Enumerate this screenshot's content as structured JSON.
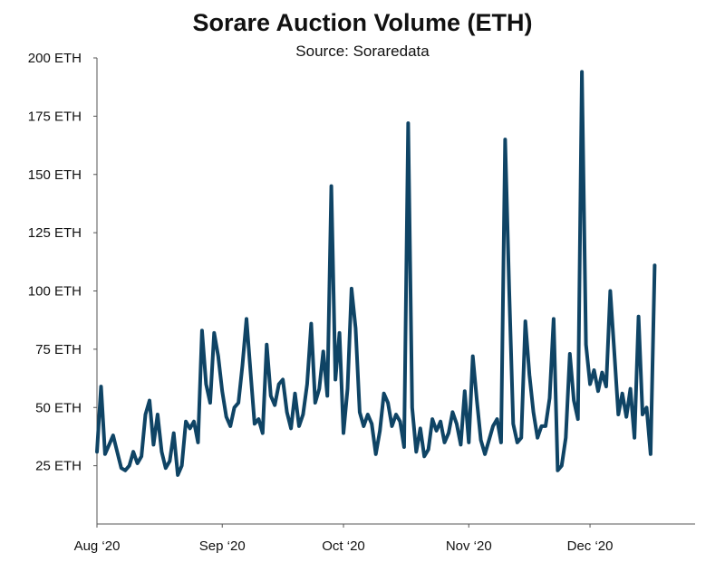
{
  "chart_data": {
    "type": "line",
    "title": "Sorare Auction Volume (ETH)",
    "subtitle": "Source: Soraredata",
    "xlabel": "",
    "ylabel": "",
    "ylim": [
      0,
      200
    ],
    "xlim": [
      "2020-08-01",
      "2020-12-27"
    ],
    "y_ticks": [
      25,
      50,
      75,
      100,
      125,
      150,
      175,
      200
    ],
    "y_tick_labels": [
      "25 ETH",
      "50 ETH",
      "75 ETH",
      "100 ETH",
      "125 ETH",
      "150 ETH",
      "175 ETH",
      "200 ETH"
    ],
    "x_ticks": [
      "2020-08-01",
      "2020-09-01",
      "2020-10-01",
      "2020-11-01",
      "2020-12-01"
    ],
    "x_tick_labels": [
      "Aug ‘20",
      "Sep ‘20",
      "Oct ‘20",
      "Nov ‘20",
      "Dec ‘20"
    ],
    "grid": false,
    "line_color": "#0f4465",
    "series": [
      {
        "start_date": "2020-08-01",
        "step_days": 1,
        "values": [
          31,
          59,
          30,
          34,
          38,
          31,
          24,
          23,
          25,
          31,
          26,
          29,
          47,
          53,
          34,
          47,
          31,
          24,
          27,
          39,
          21,
          25,
          44,
          41,
          44,
          35,
          83,
          60,
          52,
          82,
          72,
          57,
          46,
          42,
          50,
          52,
          68,
          88,
          65,
          43,
          45,
          39,
          77,
          55,
          51,
          60,
          62,
          48,
          41,
          56,
          42,
          47,
          60,
          86,
          52,
          58,
          74,
          55,
          145,
          62,
          82,
          39,
          58,
          101,
          84,
          48,
          42,
          47,
          43,
          30,
          40,
          56,
          52,
          42,
          47,
          44,
          33,
          172,
          50,
          31,
          41,
          29,
          32,
          45,
          40,
          44,
          35,
          39,
          48,
          43,
          34,
          57,
          35,
          72,
          53,
          36,
          30,
          36,
          42,
          45,
          35,
          165,
          100,
          43,
          35,
          37,
          87,
          64,
          48,
          37,
          42,
          42,
          54,
          88,
          23,
          25,
          37,
          73,
          53,
          45,
          194,
          77,
          60,
          66,
          57,
          65,
          59,
          100,
          74,
          47,
          56,
          46,
          58,
          37,
          89,
          47,
          50,
          30,
          111
        ]
      }
    ]
  }
}
